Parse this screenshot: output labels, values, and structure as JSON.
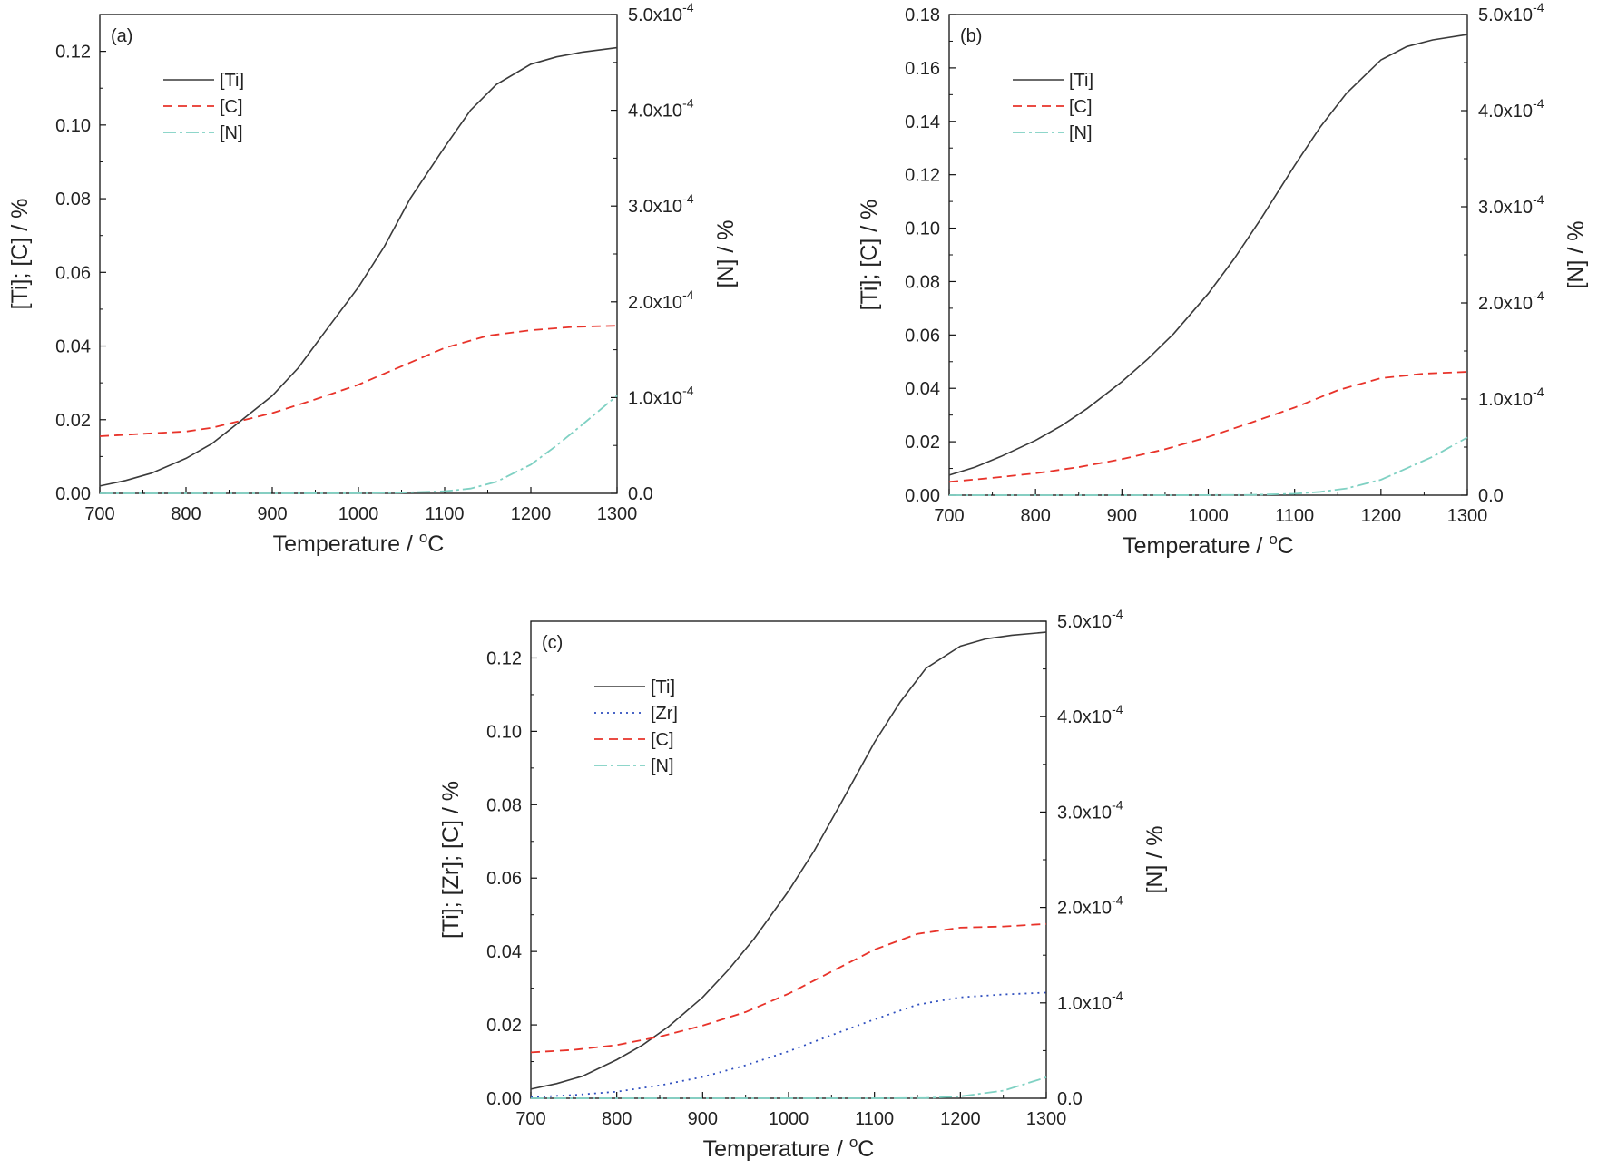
{
  "chart_data": [
    {
      "type": "line",
      "panel_label": "(a)",
      "xlabel": "Temperature / ",
      "xlabel_sup": "o",
      "xlabel_unit": "C",
      "ylabel_left": "[Ti]; [C] / %",
      "ylabel_right": "[N] / %",
      "xlim": [
        700,
        1300
      ],
      "xticks": [
        700,
        800,
        900,
        1000,
        1100,
        1200,
        1300
      ],
      "ylim_left": [
        0,
        0.13
      ],
      "yticks_left": [
        "0.00",
        "0.02",
        "0.04",
        "0.06",
        "0.08",
        "0.10",
        "0.12"
      ],
      "ylim_right": [
        0,
        0.0005
      ],
      "yticks_right": [
        {
          "mant": "0.0",
          "exp": ""
        },
        {
          "mant": "1.0x10",
          "exp": "-4"
        },
        {
          "mant": "2.0x10",
          "exp": "-4"
        },
        {
          "mant": "3.0x10",
          "exp": "-4"
        },
        {
          "mant": "4.0x10",
          "exp": "-4"
        },
        {
          "mant": "5.0x10",
          "exp": "-4"
        }
      ],
      "legend_position": "top-left",
      "series": [
        {
          "name": "[Ti]",
          "axis": "left",
          "color": "#3a3a3a",
          "dash": "",
          "x": [
            700,
            730,
            760,
            800,
            830,
            860,
            900,
            930,
            960,
            1000,
            1030,
            1060,
            1100,
            1130,
            1160,
            1200,
            1230,
            1260,
            1300
          ],
          "y": [
            0.002,
            0.0035,
            0.0055,
            0.0095,
            0.0135,
            0.019,
            0.0265,
            0.034,
            0.0435,
            0.056,
            0.067,
            0.08,
            0.094,
            0.104,
            0.111,
            0.1165,
            0.1185,
            0.1198,
            0.121
          ]
        },
        {
          "name": "[C]",
          "axis": "left",
          "color": "#e8332a",
          "dash": "10,6",
          "x": [
            700,
            760,
            800,
            830,
            860,
            900,
            950,
            1000,
            1050,
            1100,
            1150,
            1200,
            1250,
            1300
          ],
          "y": [
            0.0155,
            0.0163,
            0.0168,
            0.0178,
            0.0195,
            0.0218,
            0.0255,
            0.0295,
            0.0345,
            0.0395,
            0.0428,
            0.0443,
            0.0452,
            0.0455
          ]
        },
        {
          "name": "[N]",
          "axis": "right",
          "color": "#7fd1c3",
          "dash": "14,4,3,4",
          "x": [
            700,
            900,
            1000,
            1050,
            1100,
            1130,
            1160,
            1200,
            1230,
            1260,
            1300
          ],
          "y": [
            0.0,
            0.0,
            2e-07,
            8e-07,
            2.2e-06,
            5e-06,
            1.2e-05,
            3e-05,
            5e-05,
            7.2e-05,
            0.000102
          ]
        }
      ]
    },
    {
      "type": "line",
      "panel_label": "(b)",
      "xlabel": "Temperature / ",
      "xlabel_sup": "o",
      "xlabel_unit": "C",
      "ylabel_left": "[Ti]; [C] / %",
      "ylabel_right": "[N] / %",
      "xlim": [
        700,
        1300
      ],
      "xticks": [
        700,
        800,
        900,
        1000,
        1100,
        1200,
        1300
      ],
      "ylim_left": [
        0,
        0.18
      ],
      "yticks_left": [
        "0.00",
        "0.02",
        "0.04",
        "0.06",
        "0.08",
        "0.10",
        "0.12",
        "0.14",
        "0.16",
        "0.18"
      ],
      "ylim_right": [
        0,
        0.0005
      ],
      "yticks_right": [
        {
          "mant": "0.0",
          "exp": ""
        },
        {
          "mant": "1.0x10",
          "exp": "-4"
        },
        {
          "mant": "2.0x10",
          "exp": "-4"
        },
        {
          "mant": "3.0x10",
          "exp": "-4"
        },
        {
          "mant": "4.0x10",
          "exp": "-4"
        },
        {
          "mant": "5.0x10",
          "exp": "-4"
        }
      ],
      "legend_position": "top-left",
      "series": [
        {
          "name": "[Ti]",
          "axis": "left",
          "color": "#3a3a3a",
          "dash": "",
          "x": [
            700,
            730,
            760,
            800,
            830,
            860,
            900,
            930,
            960,
            1000,
            1030,
            1060,
            1100,
            1130,
            1160,
            1200,
            1230,
            1260,
            1300
          ],
          "y": [
            0.0075,
            0.0105,
            0.0145,
            0.0205,
            0.026,
            0.0325,
            0.0425,
            0.051,
            0.0605,
            0.0755,
            0.0885,
            0.103,
            0.1235,
            0.138,
            0.1505,
            0.163,
            0.168,
            0.1705,
            0.1725
          ]
        },
        {
          "name": "[C]",
          "axis": "left",
          "color": "#e8332a",
          "dash": "10,6",
          "x": [
            700,
            750,
            800,
            850,
            900,
            950,
            1000,
            1050,
            1100,
            1150,
            1200,
            1250,
            1300
          ],
          "y": [
            0.005,
            0.0065,
            0.0082,
            0.0105,
            0.0135,
            0.0172,
            0.0218,
            0.0272,
            0.0328,
            0.0393,
            0.0438,
            0.0455,
            0.0462
          ]
        },
        {
          "name": "[N]",
          "axis": "right",
          "color": "#7fd1c3",
          "dash": "14,4,3,4",
          "x": [
            700,
            950,
            1050,
            1100,
            1130,
            1160,
            1200,
            1230,
            1260,
            1300
          ],
          "y": [
            0.0,
            0.0,
            3e-07,
            1.5e-06,
            3.5e-06,
            7e-06,
            1.6e-05,
            2.8e-05,
            4e-05,
            6e-05
          ]
        }
      ]
    },
    {
      "type": "line",
      "panel_label": "(c)",
      "xlabel": "Temperature / ",
      "xlabel_sup": "o",
      "xlabel_unit": "C",
      "ylabel_left": "[Ti]; [Zr]; [C] / %",
      "ylabel_right": "[N] / %",
      "xlim": [
        700,
        1300
      ],
      "xticks": [
        700,
        800,
        900,
        1000,
        1100,
        1200,
        1300
      ],
      "ylim_left": [
        0,
        0.13
      ],
      "yticks_left": [
        "0.00",
        "0.02",
        "0.04",
        "0.06",
        "0.08",
        "0.10",
        "0.12"
      ],
      "ylim_right": [
        0,
        0.0005
      ],
      "yticks_right": [
        {
          "mant": "0.0",
          "exp": ""
        },
        {
          "mant": "1.0x10",
          "exp": "-4"
        },
        {
          "mant": "2.0x10",
          "exp": "-4"
        },
        {
          "mant": "3.0x10",
          "exp": "-4"
        },
        {
          "mant": "4.0x10",
          "exp": "-4"
        },
        {
          "mant": "5.0x10",
          "exp": "-4"
        }
      ],
      "legend_position": "top-left",
      "series": [
        {
          "name": "[Ti]",
          "axis": "left",
          "color": "#3a3a3a",
          "dash": "",
          "x": [
            700,
            730,
            760,
            800,
            830,
            860,
            900,
            930,
            960,
            1000,
            1030,
            1060,
            1100,
            1130,
            1160,
            1200,
            1230,
            1260,
            1300
          ],
          "y": [
            0.0025,
            0.004,
            0.006,
            0.0105,
            0.0145,
            0.0195,
            0.0275,
            0.035,
            0.0435,
            0.0565,
            0.0675,
            0.08,
            0.097,
            0.108,
            0.1172,
            0.1232,
            0.1252,
            0.1262,
            0.127
          ]
        },
        {
          "name": "[Zr]",
          "axis": "left",
          "color": "#2f4fbf",
          "dash": "2,5",
          "x": [
            700,
            750,
            800,
            850,
            900,
            950,
            1000,
            1050,
            1100,
            1150,
            1200,
            1250,
            1300
          ],
          "y": [
            0.0003,
            0.0009,
            0.0018,
            0.0035,
            0.0058,
            0.009,
            0.0128,
            0.0172,
            0.0215,
            0.0255,
            0.0275,
            0.0283,
            0.0288
          ]
        },
        {
          "name": "[C]",
          "axis": "left",
          "color": "#e8332a",
          "dash": "10,6",
          "x": [
            700,
            750,
            800,
            850,
            900,
            950,
            1000,
            1050,
            1100,
            1150,
            1200,
            1250,
            1300
          ],
          "y": [
            0.0125,
            0.0132,
            0.0145,
            0.0168,
            0.0198,
            0.0235,
            0.0285,
            0.0345,
            0.0405,
            0.0448,
            0.0465,
            0.0468,
            0.0475
          ]
        },
        {
          "name": "[N]",
          "axis": "right",
          "color": "#7fd1c3",
          "dash": "14,4,3,4",
          "x": [
            700,
            1000,
            1100,
            1160,
            1200,
            1250,
            1300
          ],
          "y": [
            0.0,
            0.0,
            0.0,
            3e-07,
            2e-06,
            8e-06,
            2.2e-05
          ]
        }
      ]
    }
  ]
}
